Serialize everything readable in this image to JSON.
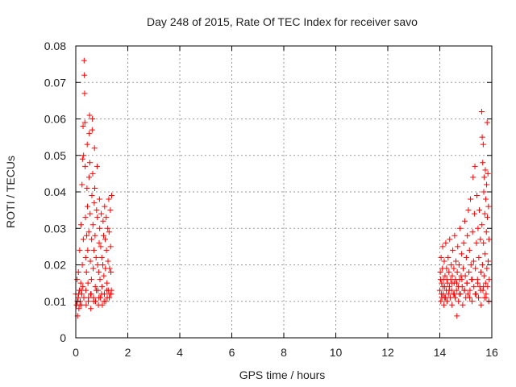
{
  "chart_data": {
    "type": "scatter",
    "title": "Day 248 of 2015, Rate Of TEC Index for receiver savo",
    "xlabel": "GPS time / hours",
    "ylabel": "ROTI / TECUs",
    "xlim": [
      0,
      16
    ],
    "ylim": [
      0,
      0.08
    ],
    "x_ticks": [
      0,
      2,
      4,
      6,
      8,
      10,
      12,
      14,
      16
    ],
    "x_tick_labels": [
      "0",
      "2",
      "4",
      "6",
      "8",
      "10",
      "12",
      "14",
      "16"
    ],
    "y_ticks": [
      0,
      0.01,
      0.02,
      0.03,
      0.04,
      0.05,
      0.06,
      0.07,
      0.08
    ],
    "y_tick_labels": [
      "0",
      "0.01",
      "0.02",
      "0.03",
      "0.04",
      "0.05",
      "0.06",
      "0.07",
      "0.08"
    ],
    "grid": true,
    "marker": "+",
    "color": "#ff0000",
    "series": [
      {
        "name": "ROTI",
        "points": [
          [
            0.0,
            0.012
          ],
          [
            0.03,
            0.009
          ],
          [
            0.05,
            0.016
          ],
          [
            0.07,
            0.006
          ],
          [
            0.09,
            0.011
          ],
          [
            0.1,
            0.018
          ],
          [
            0.12,
            0.008
          ],
          [
            0.14,
            0.013
          ],
          [
            0.15,
            0.024
          ],
          [
            0.17,
            0.01
          ],
          [
            0.19,
            0.015
          ],
          [
            0.2,
            0.031
          ],
          [
            0.22,
            0.009
          ],
          [
            0.23,
            0.012
          ],
          [
            0.24,
            0.042
          ],
          [
            0.25,
            0.02
          ],
          [
            0.26,
            0.049
          ],
          [
            0.27,
            0.014
          ],
          [
            0.28,
            0.058
          ],
          [
            0.29,
            0.027
          ],
          [
            0.3,
            0.05
          ],
          [
            0.31,
            0.011
          ],
          [
            0.32,
            0.076
          ],
          [
            0.33,
            0.072
          ],
          [
            0.34,
            0.067
          ],
          [
            0.35,
            0.059
          ],
          [
            0.36,
            0.047
          ],
          [
            0.37,
            0.033
          ],
          [
            0.38,
            0.022
          ],
          [
            0.39,
            0.013
          ],
          [
            0.4,
            0.009
          ],
          [
            0.41,
            0.018
          ],
          [
            0.42,
            0.028
          ],
          [
            0.43,
            0.041
          ],
          [
            0.44,
            0.053
          ],
          [
            0.45,
            0.036
          ],
          [
            0.46,
            0.024
          ],
          [
            0.47,
            0.015
          ],
          [
            0.48,
            0.01
          ],
          [
            0.5,
            0.029
          ],
          [
            0.51,
            0.044
          ],
          [
            0.52,
            0.056
          ],
          [
            0.53,
            0.061
          ],
          [
            0.54,
            0.048
          ],
          [
            0.55,
            0.034
          ],
          [
            0.56,
            0.021
          ],
          [
            0.57,
            0.012
          ],
          [
            0.58,
            0.008
          ],
          [
            0.6,
            0.016
          ],
          [
            0.61,
            0.027
          ],
          [
            0.62,
            0.039
          ],
          [
            0.63,
            0.057
          ],
          [
            0.64,
            0.06
          ],
          [
            0.65,
            0.045
          ],
          [
            0.66,
            0.031
          ],
          [
            0.67,
            0.019
          ],
          [
            0.68,
            0.011
          ],
          [
            0.7,
            0.024
          ],
          [
            0.71,
            0.037
          ],
          [
            0.72,
            0.052
          ],
          [
            0.73,
            0.041
          ],
          [
            0.74,
            0.028
          ],
          [
            0.75,
            0.014
          ],
          [
            0.76,
            0.01
          ],
          [
            0.78,
            0.022
          ],
          [
            0.8,
            0.035
          ],
          [
            0.82,
            0.047
          ],
          [
            0.83,
            0.033
          ],
          [
            0.84,
            0.02
          ],
          [
            0.85,
            0.013
          ],
          [
            0.87,
            0.009
          ],
          [
            0.88,
            0.018
          ],
          [
            0.9,
            0.026
          ],
          [
            0.91,
            0.038
          ],
          [
            0.92,
            0.03
          ],
          [
            0.93,
            0.016
          ],
          [
            0.95,
            0.011
          ],
          [
            0.96,
            0.025
          ],
          [
            0.98,
            0.034
          ],
          [
            1.0,
            0.022
          ],
          [
            1.01,
            0.014
          ],
          [
            1.02,
            0.009
          ],
          [
            1.04,
            0.02
          ],
          [
            1.05,
            0.032
          ],
          [
            1.07,
            0.028
          ],
          [
            1.08,
            0.017
          ],
          [
            1.1,
            0.012
          ],
          [
            1.11,
            0.036
          ],
          [
            1.13,
            0.027
          ],
          [
            1.14,
            0.019
          ],
          [
            1.15,
            0.01
          ],
          [
            1.17,
            0.033
          ],
          [
            1.18,
            0.024
          ],
          [
            1.2,
            0.015
          ],
          [
            1.21,
            0.011
          ],
          [
            1.23,
            0.03
          ],
          [
            1.24,
            0.021
          ],
          [
            1.25,
            0.013
          ],
          [
            1.27,
            0.038
          ],
          [
            1.28,
            0.029
          ],
          [
            1.3,
            0.019
          ],
          [
            1.31,
            0.012
          ],
          [
            1.33,
            0.035
          ],
          [
            1.34,
            0.025
          ],
          [
            1.35,
            0.018
          ],
          [
            1.37,
            0.013
          ],
          [
            1.38,
            0.039
          ],
          [
            14.0,
            0.013
          ],
          [
            14.02,
            0.018
          ],
          [
            14.04,
            0.01
          ],
          [
            14.05,
            0.022
          ],
          [
            14.07,
            0.015
          ],
          [
            14.08,
            0.011
          ],
          [
            14.1,
            0.019
          ],
          [
            14.11,
            0.025
          ],
          [
            14.13,
            0.012
          ],
          [
            14.14,
            0.016
          ],
          [
            14.16,
            0.009
          ],
          [
            14.17,
            0.021
          ],
          [
            14.19,
            0.014
          ],
          [
            14.2,
            0.017
          ],
          [
            14.22,
            0.011
          ],
          [
            14.23,
            0.026
          ],
          [
            14.25,
            0.013
          ],
          [
            14.26,
            0.019
          ],
          [
            14.28,
            0.01
          ],
          [
            14.3,
            0.015
          ],
          [
            14.32,
            0.022
          ],
          [
            14.33,
            0.012
          ],
          [
            14.35,
            0.018
          ],
          [
            14.37,
            0.014
          ],
          [
            14.38,
            0.027
          ],
          [
            14.4,
            0.011
          ],
          [
            14.42,
            0.016
          ],
          [
            14.44,
            0.02
          ],
          [
            14.45,
            0.013
          ],
          [
            14.47,
            0.009
          ],
          [
            14.48,
            0.017
          ],
          [
            14.5,
            0.024
          ],
          [
            14.52,
            0.012
          ],
          [
            14.54,
            0.019
          ],
          [
            14.55,
            0.015
          ],
          [
            14.57,
            0.028
          ],
          [
            14.59,
            0.011
          ],
          [
            14.6,
            0.016
          ],
          [
            14.62,
            0.021
          ],
          [
            14.64,
            0.013
          ],
          [
            14.66,
            0.006
          ],
          [
            14.67,
            0.018
          ],
          [
            14.69,
            0.025
          ],
          [
            14.71,
            0.014
          ],
          [
            14.72,
            0.01
          ],
          [
            14.74,
            0.02
          ],
          [
            14.76,
            0.016
          ],
          [
            14.78,
            0.03
          ],
          [
            14.8,
            0.012
          ],
          [
            14.82,
            0.017
          ],
          [
            14.84,
            0.023
          ],
          [
            14.86,
            0.014
          ],
          [
            14.88,
            0.009
          ],
          [
            14.9,
            0.019
          ],
          [
            14.92,
            0.026
          ],
          [
            14.94,
            0.013
          ],
          [
            14.96,
            0.032
          ],
          [
            14.98,
            0.017
          ],
          [
            15.0,
            0.011
          ],
          [
            15.02,
            0.022
          ],
          [
            15.04,
            0.015
          ],
          [
            15.06,
            0.028
          ],
          [
            15.08,
            0.012
          ],
          [
            15.1,
            0.035
          ],
          [
            15.12,
            0.018
          ],
          [
            15.14,
            0.024
          ],
          [
            15.16,
            0.013
          ],
          [
            15.18,
            0.038
          ],
          [
            15.2,
            0.02
          ],
          [
            15.22,
            0.016
          ],
          [
            15.24,
            0.01
          ],
          [
            15.26,
            0.029
          ],
          [
            15.28,
            0.044
          ],
          [
            15.3,
            0.021
          ],
          [
            15.31,
            0.014
          ],
          [
            15.33,
            0.034
          ],
          [
            15.35,
            0.047
          ],
          [
            15.37,
            0.019
          ],
          [
            15.39,
            0.012
          ],
          [
            15.41,
            0.026
          ],
          [
            15.43,
            0.039
          ],
          [
            15.45,
            0.016
          ],
          [
            15.47,
            0.03
          ],
          [
            15.49,
            0.011
          ],
          [
            15.5,
            0.022
          ],
          [
            15.52,
            0.035
          ],
          [
            15.54,
            0.014
          ],
          [
            15.56,
            0.027
          ],
          [
            15.58,
            0.018
          ],
          [
            15.59,
            0.009
          ],
          [
            15.61,
            0.062
          ],
          [
            15.62,
            0.031
          ],
          [
            15.63,
            0.055
          ],
          [
            15.64,
            0.02
          ],
          [
            15.65,
            0.048
          ],
          [
            15.66,
            0.013
          ],
          [
            15.67,
            0.053
          ],
          [
            15.68,
            0.026
          ],
          [
            15.69,
            0.04
          ],
          [
            15.7,
            0.017
          ],
          [
            15.71,
            0.044
          ],
          [
            15.72,
            0.011
          ],
          [
            15.73,
            0.034
          ],
          [
            15.74,
            0.023
          ],
          [
            15.75,
            0.046
          ],
          [
            15.76,
            0.015
          ],
          [
            15.77,
            0.038
          ],
          [
            15.78,
            0.012
          ],
          [
            15.79,
            0.029
          ],
          [
            15.8,
            0.042
          ],
          [
            15.81,
            0.019
          ],
          [
            15.82,
            0.059
          ],
          [
            15.83,
            0.033
          ],
          [
            15.84,
            0.014
          ],
          [
            15.85,
            0.045
          ],
          [
            15.86,
            0.021
          ],
          [
            15.87,
            0.036
          ],
          [
            15.88,
            0.01
          ],
          [
            15.89,
            0.027
          ],
          [
            15.9,
            0.016
          ],
          [
            14.03,
            0.016
          ],
          [
            14.06,
            0.012
          ],
          [
            14.12,
            0.014
          ],
          [
            14.18,
            0.011
          ],
          [
            14.27,
            0.016
          ],
          [
            14.36,
            0.013
          ],
          [
            14.46,
            0.015
          ],
          [
            14.56,
            0.012
          ],
          [
            14.65,
            0.015
          ],
          [
            14.75,
            0.012
          ],
          [
            14.85,
            0.016
          ],
          [
            14.95,
            0.013
          ],
          [
            15.05,
            0.015
          ],
          [
            15.15,
            0.011
          ],
          [
            15.25,
            0.016
          ],
          [
            15.36,
            0.012
          ],
          [
            15.46,
            0.015
          ],
          [
            15.57,
            0.013
          ],
          [
            15.68,
            0.014
          ],
          [
            15.78,
            0.011
          ],
          [
            0.06,
            0.01
          ],
          [
            0.11,
            0.012
          ],
          [
            0.16,
            0.009
          ],
          [
            0.21,
            0.013
          ],
          [
            0.49,
            0.011
          ],
          [
            0.59,
            0.012
          ],
          [
            0.69,
            0.01
          ],
          [
            0.79,
            0.013
          ],
          [
            0.89,
            0.011
          ],
          [
            0.99,
            0.012
          ],
          [
            1.09,
            0.01
          ],
          [
            1.19,
            0.013
          ],
          [
            1.29,
            0.011
          ],
          [
            1.36,
            0.012
          ]
        ]
      }
    ]
  }
}
